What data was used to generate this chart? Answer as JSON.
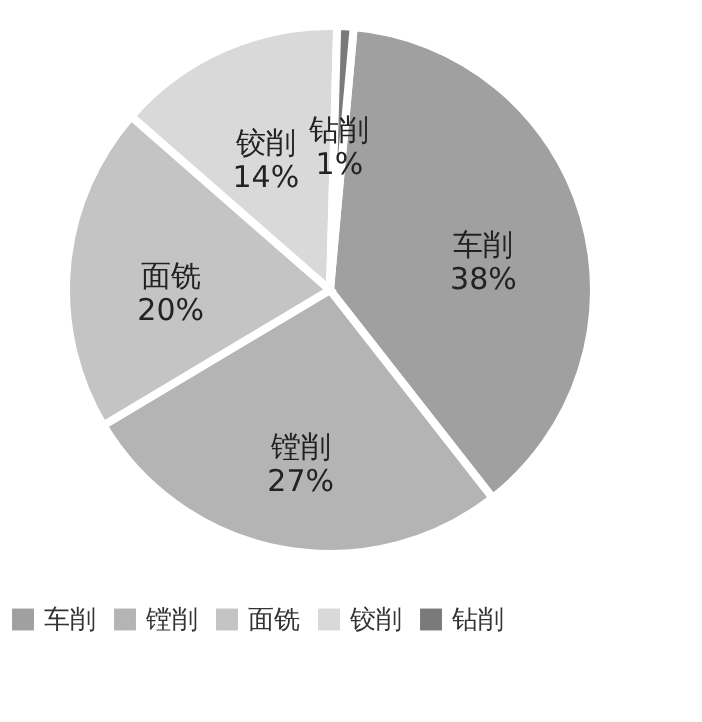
{
  "chart_data": {
    "type": "pie",
    "categories": [
      "车削",
      "镗削",
      "面铣",
      "铰削",
      "钻削"
    ],
    "values": [
      38,
      27,
      20,
      14,
      1
    ],
    "value_labels": [
      "38%",
      "27%",
      "20%",
      "14%",
      "1%"
    ],
    "colors": [
      "#a0a0a0",
      "#b4b4b4",
      "#c4c4c4",
      "#d9d9d9",
      "#7a7a7a"
    ],
    "legend": "bottom"
  }
}
